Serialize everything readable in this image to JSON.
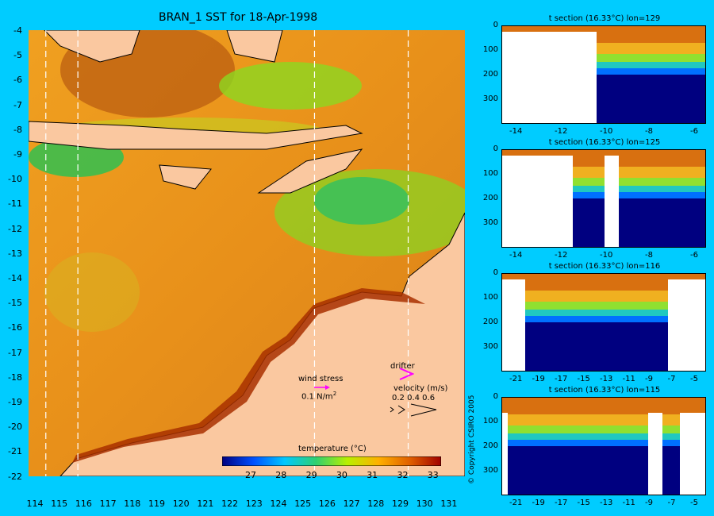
{
  "map": {
    "title": "BRAN_1 SST for 18-Apr-1998",
    "lat_ticks": [
      "-4",
      "-5",
      "-6",
      "-7",
      "-8",
      "-9",
      "-10",
      "-11",
      "-12",
      "-13",
      "-14",
      "-15",
      "-16",
      "-17",
      "-18",
      "-19",
      "-20",
      "-21",
      "-22"
    ],
    "lon_ticks": [
      "114",
      "115",
      "116",
      "117",
      "118",
      "119",
      "120",
      "121",
      "122",
      "123",
      "124",
      "125",
      "126",
      "127",
      "128",
      "129",
      "130",
      "131"
    ],
    "section_lines_lon": [
      114.5,
      115.8,
      125.4,
      129.2
    ],
    "colors": {
      "land": "#fac8a0",
      "background": "#00ccff"
    }
  },
  "colorbar": {
    "title": "temperature (°C)",
    "labels": [
      "27",
      "28",
      "29",
      "30",
      "31",
      "32",
      "33"
    ],
    "colors": [
      "#000080",
      "#0050ff",
      "#00c8ff",
      "#30d070",
      "#b8f000",
      "#ffb000",
      "#e06000",
      "#a00000"
    ]
  },
  "legend": {
    "wind_label": "wind stress",
    "wind_value": "0.1 N/m",
    "wind_sup": "2",
    "drifter_label": "drifter",
    "velocity_label": "velocity (m/s)",
    "velocity_values": "0.2 0.4 0.6"
  },
  "sections": [
    {
      "title": "t section (16.33°C) lon=129",
      "x_ticks": [
        "-14",
        "-12",
        "-10",
        "-8",
        "-6"
      ],
      "y_ticks": [
        "0",
        "100",
        "200",
        "300"
      ]
    },
    {
      "title": "t section (16.33°C) lon=125",
      "x_ticks": [
        "-14",
        "-12",
        "-10",
        "-8",
        "-6"
      ],
      "y_ticks": [
        "0",
        "100",
        "200",
        "300"
      ]
    },
    {
      "title": "t section (16.33°C) lon=116",
      "x_ticks": [
        "-21",
        "-19",
        "-17",
        "-15",
        "-13",
        "-11",
        "-9",
        "-7",
        "-5"
      ],
      "y_ticks": [
        "0",
        "100",
        "200",
        "300"
      ]
    },
    {
      "title": "t section (16.33°C) lon=115",
      "x_ticks": [
        "-21",
        "-19",
        "-17",
        "-15",
        "-13",
        "-11",
        "-9",
        "-7",
        "-5"
      ],
      "y_ticks": [
        "0",
        "100",
        "200",
        "300"
      ]
    }
  ],
  "copyright": "© Copyright CSIRO 2005"
}
